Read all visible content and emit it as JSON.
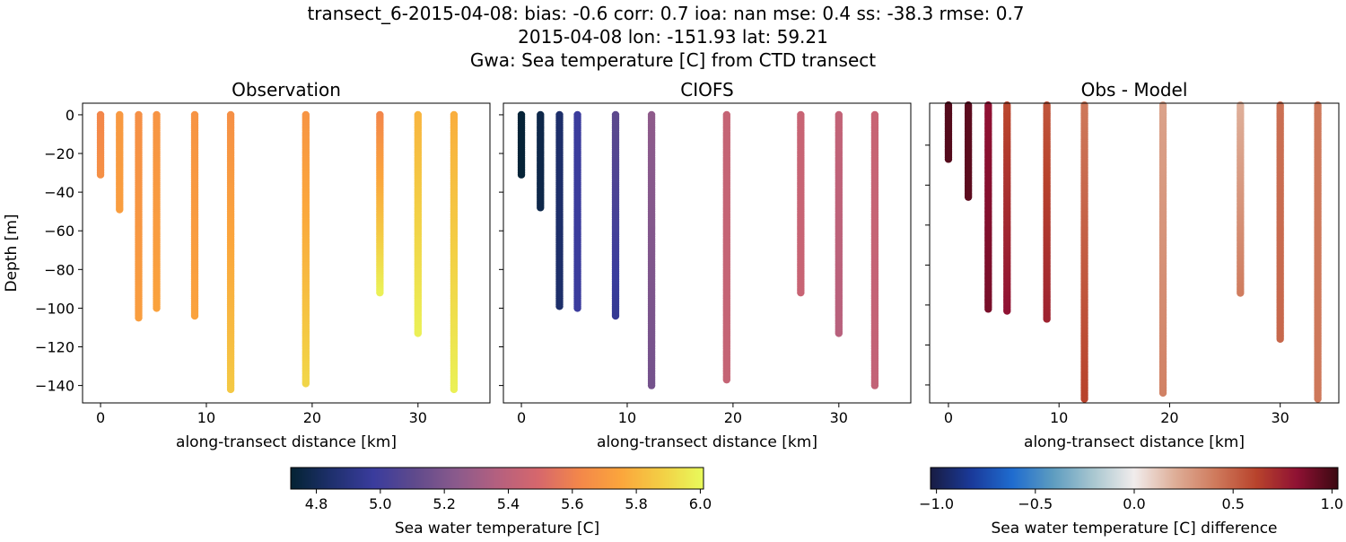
{
  "title_lines": [
    "transect_6-2015-04-08: bias: -0.6  corr: 0.7  ioa: nan  mse: 0.4  ss: -38.3  rmse: 0.7",
    "2015-04-08 lon: -151.93 lat: 59.21",
    "Gwa: Sea temperature [C] from CTD transect"
  ],
  "chart_data": [
    {
      "type": "scatter",
      "title": "Observation",
      "xlabel": "along-transect distance [km]",
      "ylabel": "Depth [m]",
      "xlim": [
        -1.7,
        36.8
      ],
      "ylim": [
        -149,
        6
      ],
      "xticks": [
        0,
        10,
        20,
        30
      ],
      "yticks": [
        0,
        -20,
        -40,
        -60,
        -80,
        -100,
        -120,
        -140
      ],
      "show_ytick_labels": true,
      "colormap": "thermal",
      "stations": [
        {
          "x": 0,
          "max_depth": 31,
          "value_top": 5.62,
          "value_bottom": 5.66
        },
        {
          "x": 1.8,
          "max_depth": 49,
          "value_top": 5.7,
          "value_bottom": 5.72
        },
        {
          "x": 3.6,
          "max_depth": 105,
          "value_top": 5.66,
          "value_bottom": 5.72
        },
        {
          "x": 5.3,
          "max_depth": 100,
          "value_top": 5.68,
          "value_bottom": 5.74
        },
        {
          "x": 8.9,
          "max_depth": 104,
          "value_top": 5.68,
          "value_bottom": 5.74
        },
        {
          "x": 12.3,
          "max_depth": 142,
          "value_top": 5.66,
          "value_bottom": 5.86
        },
        {
          "x": 19.4,
          "max_depth": 139,
          "value_top": 5.68,
          "value_bottom": 5.9
        },
        {
          "x": 26.4,
          "max_depth": 92,
          "value_top": 5.62,
          "value_bottom": 5.98
        },
        {
          "x": 30.0,
          "max_depth": 113,
          "value_top": 5.8,
          "value_bottom": 5.98
        },
        {
          "x": 33.4,
          "max_depth": 142,
          "value_top": 5.78,
          "value_bottom": 5.98
        }
      ]
    },
    {
      "type": "scatter",
      "title": "CIOFS",
      "xlabel": "along-transect distance [km]",
      "xlim": [
        -1.7,
        36.8
      ],
      "ylim": [
        -149,
        6
      ],
      "xticks": [
        0,
        10,
        20,
        30
      ],
      "yticks": [
        0,
        -20,
        -40,
        -60,
        -80,
        -100,
        -120,
        -140
      ],
      "show_ytick_labels": false,
      "colormap": "thermal",
      "stations": [
        {
          "x": 0,
          "max_depth": 31,
          "value_top": 4.73,
          "value_bottom": 4.73
        },
        {
          "x": 1.8,
          "max_depth": 48,
          "value_top": 4.77,
          "value_bottom": 4.77
        },
        {
          "x": 3.6,
          "max_depth": 99,
          "value_top": 4.84,
          "value_bottom": 4.84
        },
        {
          "x": 5.3,
          "max_depth": 100,
          "value_top": 4.98,
          "value_bottom": 4.98
        },
        {
          "x": 8.9,
          "max_depth": 104,
          "value_top": 5.1,
          "value_bottom": 4.95
        },
        {
          "x": 12.3,
          "max_depth": 140,
          "value_top": 5.25,
          "value_bottom": 5.17
        },
        {
          "x": 19.4,
          "max_depth": 137,
          "value_top": 5.43,
          "value_bottom": 5.43
        },
        {
          "x": 26.4,
          "max_depth": 92,
          "value_top": 5.44,
          "value_bottom": 5.44
        },
        {
          "x": 30.0,
          "max_depth": 113,
          "value_top": 5.42,
          "value_bottom": 5.38
        },
        {
          "x": 33.4,
          "max_depth": 140,
          "value_top": 5.44,
          "value_bottom": 5.42
        }
      ]
    },
    {
      "type": "scatter",
      "title": "Obs - Model",
      "xlabel": "along-transect distance [km]",
      "xlim": [
        -1.7,
        35.3
      ],
      "ylim": [
        -149,
        1
      ],
      "xticks": [
        0,
        10,
        20,
        30
      ],
      "yticks": [
        -20,
        -40,
        -60,
        -80,
        -100,
        -120,
        -140
      ],
      "show_ytick_labels": false,
      "colormap": "balance",
      "stations": [
        {
          "x": 0,
          "max_depth": 27,
          "value_top": 0.97,
          "value_bottom": 0.97
        },
        {
          "x": 1.8,
          "max_depth": 46,
          "value_top": 0.95,
          "value_bottom": 0.95
        },
        {
          "x": 3.6,
          "max_depth": 102,
          "value_top": 0.82,
          "value_bottom": 0.88
        },
        {
          "x": 5.3,
          "max_depth": 103,
          "value_top": 0.6,
          "value_bottom": 0.82
        },
        {
          "x": 8.9,
          "max_depth": 107,
          "value_top": 0.55,
          "value_bottom": 0.75
        },
        {
          "x": 12.3,
          "max_depth": 147,
          "value_top": 0.42,
          "value_bottom": 0.62
        },
        {
          "x": 19.4,
          "max_depth": 144,
          "value_top": 0.25,
          "value_bottom": 0.38
        },
        {
          "x": 26.4,
          "max_depth": 94,
          "value_top": 0.2,
          "value_bottom": 0.4
        },
        {
          "x": 30.0,
          "max_depth": 117,
          "value_top": 0.45,
          "value_bottom": 0.48
        },
        {
          "x": 33.4,
          "max_depth": 147,
          "value_top": 0.42,
          "value_bottom": 0.42
        }
      ]
    }
  ],
  "colorbars": [
    {
      "label": "Sea water temperature [C]",
      "colormap": "thermal",
      "range": [
        4.72,
        6.01
      ],
      "ticks": [
        "4.8",
        "5.0",
        "5.2",
        "5.4",
        "5.6",
        "5.8",
        "6.0"
      ]
    },
    {
      "label": "Sea water temperature [C] difference",
      "colormap": "balance",
      "range": [
        -1.03,
        1.03
      ],
      "ticks": [
        "−1.0",
        "−0.5",
        "0.0",
        "0.5",
        "1.0"
      ]
    }
  ],
  "colormaps": {
    "thermal": [
      "#042333",
      "#1f306e",
      "#3a3c9d",
      "#5f4a8c",
      "#8a5a8c",
      "#b4607f",
      "#d6676c",
      "#f3874a",
      "#fba53c",
      "#f3cf45",
      "#e8fa5b"
    ],
    "balance": [
      "#181c43",
      "#1a3a9a",
      "#1f6ccf",
      "#5d9cc0",
      "#a9c7d0",
      "#f1ecec",
      "#deae98",
      "#cf7a5c",
      "#b8432c",
      "#8f1133",
      "#3c0912"
    ]
  }
}
